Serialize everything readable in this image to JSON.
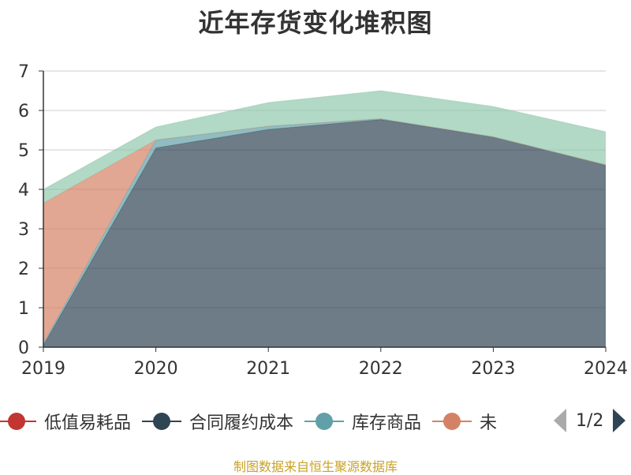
{
  "chart_data": {
    "type": "area",
    "title": "近年存货变化堆积图",
    "stacked": true,
    "x": [
      "2019",
      "2020",
      "2021",
      "2022",
      "2023",
      "2024"
    ],
    "ylim": [
      0,
      7
    ],
    "yticks": [
      "0",
      "1",
      "2",
      "3",
      "4",
      "5",
      "6",
      "7"
    ],
    "grid": true,
    "legend_position": "bottom",
    "series": [
      {
        "name": "低值易耗品",
        "color": "#c23531",
        "values": [
          0,
          0,
          0,
          0,
          0,
          0
        ]
      },
      {
        "name": "合同履约成本",
        "color": "#2f4554",
        "values": [
          0.05,
          5.05,
          5.52,
          5.77,
          5.33,
          4.62
        ]
      },
      {
        "name": "库存商品",
        "color": "#61a0a8",
        "values": [
          0.05,
          0.2,
          0.08,
          0.02,
          0.0,
          0.0
        ]
      },
      {
        "name": "未",
        "color": "#d48265",
        "values": [
          3.55,
          0.0,
          0.0,
          0.0,
          0.0,
          0.0
        ]
      },
      {
        "name": "",
        "color": "#91c7ae",
        "values": [
          0.35,
          0.33,
          0.6,
          0.71,
          0.77,
          0.84
        ]
      }
    ]
  },
  "legend": {
    "items": [
      {
        "label": "低值易耗品",
        "color": "#c23531"
      },
      {
        "label": "合同履约成本",
        "color": "#2f4554"
      },
      {
        "label": "库存商品",
        "color": "#61a0a8"
      },
      {
        "label": "未",
        "color": "#d48265"
      }
    ],
    "page": "1/2"
  },
  "footer": "制图数据来自恒生聚源数据库"
}
